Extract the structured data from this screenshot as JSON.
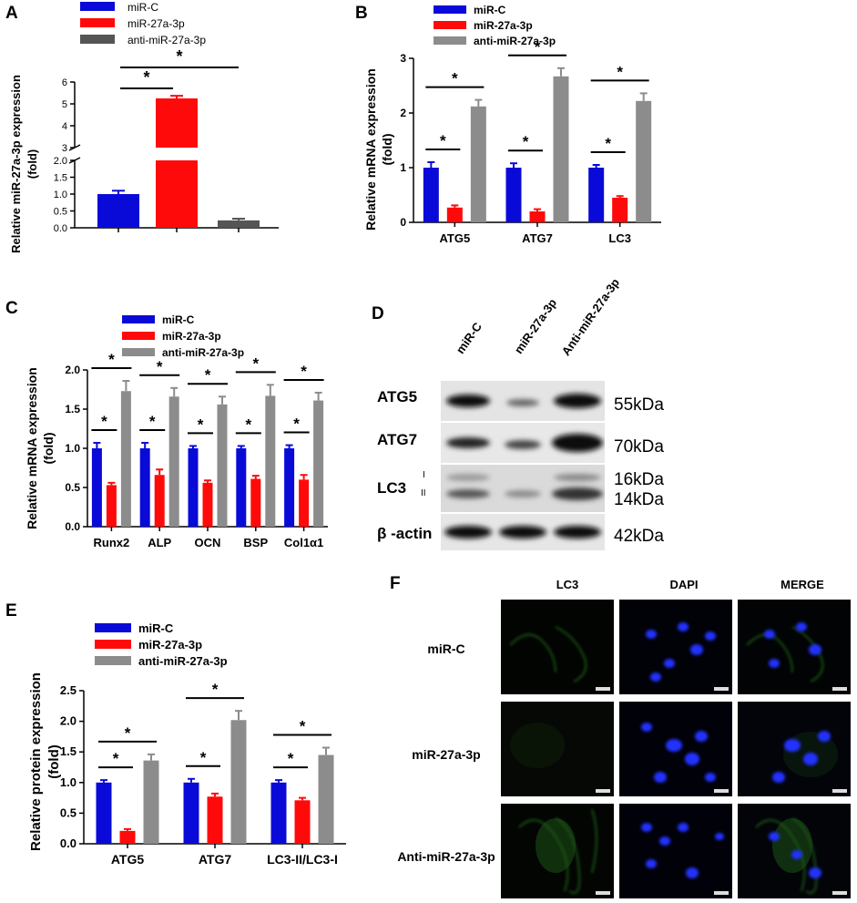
{
  "colors": {
    "miR_C": "#0a0ad8",
    "miR_27a": "#ff0a0a",
    "anti": "#8c8c8c",
    "panelA_anti": "#555555"
  },
  "panels": {
    "A": {
      "letter": "A",
      "legend": [
        "miR-C",
        "miR-27a-3p",
        "anti-miR-27a-3p"
      ],
      "ylabel_line1": "Relative miR-27a-3p expression",
      "ylabel_line2": "(fold)",
      "sig": [
        "*",
        "*"
      ]
    },
    "B": {
      "letter": "B",
      "legend": [
        "miR-C",
        "miR-27a-3p",
        "anti-miR-27a-3p"
      ],
      "ylabel_line1": "Relative mRNA expression",
      "ylabel_line2": "(fold)"
    },
    "C": {
      "letter": "C",
      "legend": [
        "miR-C",
        "miR-27a-3p",
        "anti-miR-27a-3p"
      ],
      "ylabel_line1": "Relative mRNA expression",
      "ylabel_line2": "(fold)"
    },
    "D": {
      "letter": "D",
      "lanes": [
        "miR-C",
        "miR-27a-3p",
        "Anti-miR-27a-3p"
      ],
      "rows": [
        {
          "label": "ATG5",
          "kda": "55kDa"
        },
        {
          "label": "ATG7",
          "kda": "70kDa"
        },
        {
          "label": "LC3",
          "kda": "16kDa",
          "kda2": "14kDa",
          "sub1": "I",
          "sub2": "II"
        },
        {
          "label": "β -actin",
          "kda": "42kDa"
        }
      ]
    },
    "E": {
      "letter": "E",
      "legend": [
        "miR-C",
        "miR-27a-3p",
        "anti-miR-27a-3p"
      ],
      "ylabel_line1": "Relative protein expression",
      "ylabel_line2": "(fold)"
    },
    "F": {
      "letter": "F",
      "columns": [
        "LC3",
        "DAPI",
        "MERGE"
      ],
      "rows": [
        "miR-C",
        "miR-27a-3p",
        "Anti-miR-27a-3p"
      ]
    }
  },
  "chart_data": [
    {
      "panel": "A",
      "type": "bar",
      "categories": [
        "miR-C",
        "miR-27a-3p",
        "anti-miR-27a-3p"
      ],
      "values": [
        1.0,
        5.25,
        0.22
      ],
      "errors": [
        0.1,
        0.12,
        0.05
      ],
      "axis_break": [
        2.0,
        3.0
      ],
      "yticks_lower": [
        "0.0",
        "0.5",
        "1.0",
        "1.5",
        "2.0"
      ],
      "yticks_upper": [
        "3",
        "4",
        "5",
        "6"
      ]
    },
    {
      "panel": "B",
      "type": "bar",
      "categories": [
        "ATG5",
        "ATG7",
        "LC3"
      ],
      "series": [
        {
          "name": "miR-C",
          "values": [
            1.0,
            1.0,
            1.0
          ],
          "errors": [
            0.1,
            0.08,
            0.05
          ]
        },
        {
          "name": "miR-27a-3p",
          "values": [
            0.27,
            0.2,
            0.45
          ],
          "errors": [
            0.04,
            0.04,
            0.03
          ]
        },
        {
          "name": "anti-miR-27a-3p",
          "values": [
            2.12,
            2.67,
            2.22
          ],
          "errors": [
            0.12,
            0.15,
            0.14
          ]
        }
      ],
      "ylim": [
        0,
        3
      ],
      "yticks": [
        "0",
        "1",
        "2",
        "3"
      ]
    },
    {
      "panel": "C",
      "type": "bar",
      "categories": [
        "Runx2",
        "ALP",
        "OCN",
        "BSP",
        "Col1α1"
      ],
      "series": [
        {
          "name": "miR-C",
          "values": [
            1.0,
            1.0,
            1.0,
            1.0,
            1.0
          ],
          "errors": [
            0.07,
            0.07,
            0.03,
            0.03,
            0.04
          ]
        },
        {
          "name": "miR-27a-3p",
          "values": [
            0.53,
            0.66,
            0.56,
            0.61,
            0.6
          ],
          "errors": [
            0.03,
            0.07,
            0.03,
            0.04,
            0.06
          ]
        },
        {
          "name": "anti-miR-27a-3p",
          "values": [
            1.73,
            1.66,
            1.56,
            1.67,
            1.61
          ],
          "errors": [
            0.13,
            0.11,
            0.1,
            0.14,
            0.1
          ]
        }
      ],
      "ylim": [
        0,
        2.0
      ],
      "yticks": [
        "0.0",
        "0.5",
        "1.0",
        "1.5",
        "2.0"
      ]
    },
    {
      "panel": "E",
      "type": "bar",
      "categories": [
        "ATG5",
        "ATG7",
        "LC3-II/LC3-I"
      ],
      "series": [
        {
          "name": "miR-C",
          "values": [
            1.0,
            1.0,
            1.0
          ],
          "errors": [
            0.04,
            0.06,
            0.04
          ]
        },
        {
          "name": "miR-27a-3p",
          "values": [
            0.21,
            0.77,
            0.71
          ],
          "errors": [
            0.03,
            0.05,
            0.04
          ]
        },
        {
          "name": "anti-miR-27a-3p",
          "values": [
            1.36,
            2.02,
            1.45
          ],
          "errors": [
            0.1,
            0.15,
            0.12
          ]
        }
      ],
      "ylim": [
        0,
        2.5
      ],
      "yticks": [
        "0.0",
        "0.5",
        "1.0",
        "1.5",
        "2.0",
        "2.5"
      ]
    }
  ]
}
